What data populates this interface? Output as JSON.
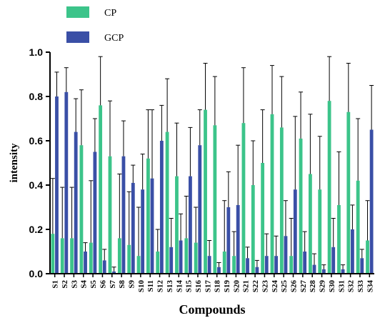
{
  "chart_data": {
    "type": "bar",
    "title": "",
    "xlabel": "Compounds",
    "ylabel": "intensity",
    "ylim": [
      0,
      1.0
    ],
    "yticks": [
      "0.0",
      "0.2",
      "0.4",
      "0.6",
      "0.8",
      "1.0"
    ],
    "ytick_values": [
      0,
      0.2,
      0.4,
      0.6,
      0.8,
      1.0
    ],
    "grid": false,
    "legend_position": "top-left",
    "error_bars": true,
    "categories": [
      "S1",
      "S2",
      "S3",
      "S4",
      "S5",
      "S6",
      "S7",
      "S8",
      "S9",
      "S10",
      "S11",
      "S12",
      "S13",
      "S14",
      "S15",
      "S16",
      "S17",
      "S18",
      "S19",
      "S20",
      "S21",
      "S22",
      "S23",
      "S24",
      "S25",
      "S26",
      "S27",
      "S28",
      "S29",
      "S30",
      "S31",
      "S32",
      "S33",
      "S34"
    ],
    "series": [
      {
        "name": "CP",
        "color": "#3cc48a",
        "values": [
          0.18,
          0.16,
          0.16,
          0.58,
          0.14,
          0.76,
          0.53,
          0.16,
          0.13,
          0.08,
          0.52,
          0.1,
          0.64,
          0.44,
          0.16,
          0.14,
          0.74,
          0.67,
          0.1,
          0.08,
          0.68,
          0.4,
          0.5,
          0.72,
          0.66,
          0.08,
          0.61,
          0.45,
          0.38,
          0.78,
          0.31,
          0.73,
          0.42,
          0.15
        ],
        "errors": [
          0.25,
          0.23,
          0.23,
          0.25,
          0.28,
          0.22,
          0.25,
          0.29,
          0.24,
          0.22,
          0.22,
          0.1,
          0.24,
          0.24,
          0.19,
          0.16,
          0.21,
          0.22,
          0.23,
          0.11,
          0.25,
          0.2,
          0.24,
          0.22,
          0.23,
          0.17,
          0.21,
          0.27,
          0.24,
          0.2,
          0.24,
          0.22,
          0.28,
          0.18
        ]
      },
      {
        "name": "GCP",
        "color": "#3a4fa6",
        "values": [
          0.8,
          0.82,
          0.64,
          0.1,
          0.55,
          0.06,
          0.01,
          0.53,
          0.41,
          0.38,
          0.43,
          0.6,
          0.12,
          0.15,
          0.44,
          0.58,
          0.08,
          0.03,
          0.3,
          0.31,
          0.07,
          0.03,
          0.08,
          0.08,
          0.17,
          0.38,
          0.1,
          0.04,
          0.02,
          0.12,
          0.02,
          0.2,
          0.07,
          0.65
        ],
        "errors": [
          0.11,
          0.11,
          0.15,
          0.04,
          0.15,
          0.05,
          0.02,
          0.16,
          0.08,
          0.16,
          0.31,
          0.16,
          0.13,
          0.12,
          0.22,
          0.16,
          0.07,
          0.02,
          0.16,
          0.27,
          0.05,
          0.03,
          0.1,
          0.09,
          0.16,
          0.33,
          0.09,
          0.05,
          0.02,
          0.13,
          0.02,
          0.11,
          0.04,
          0.2
        ]
      }
    ]
  }
}
